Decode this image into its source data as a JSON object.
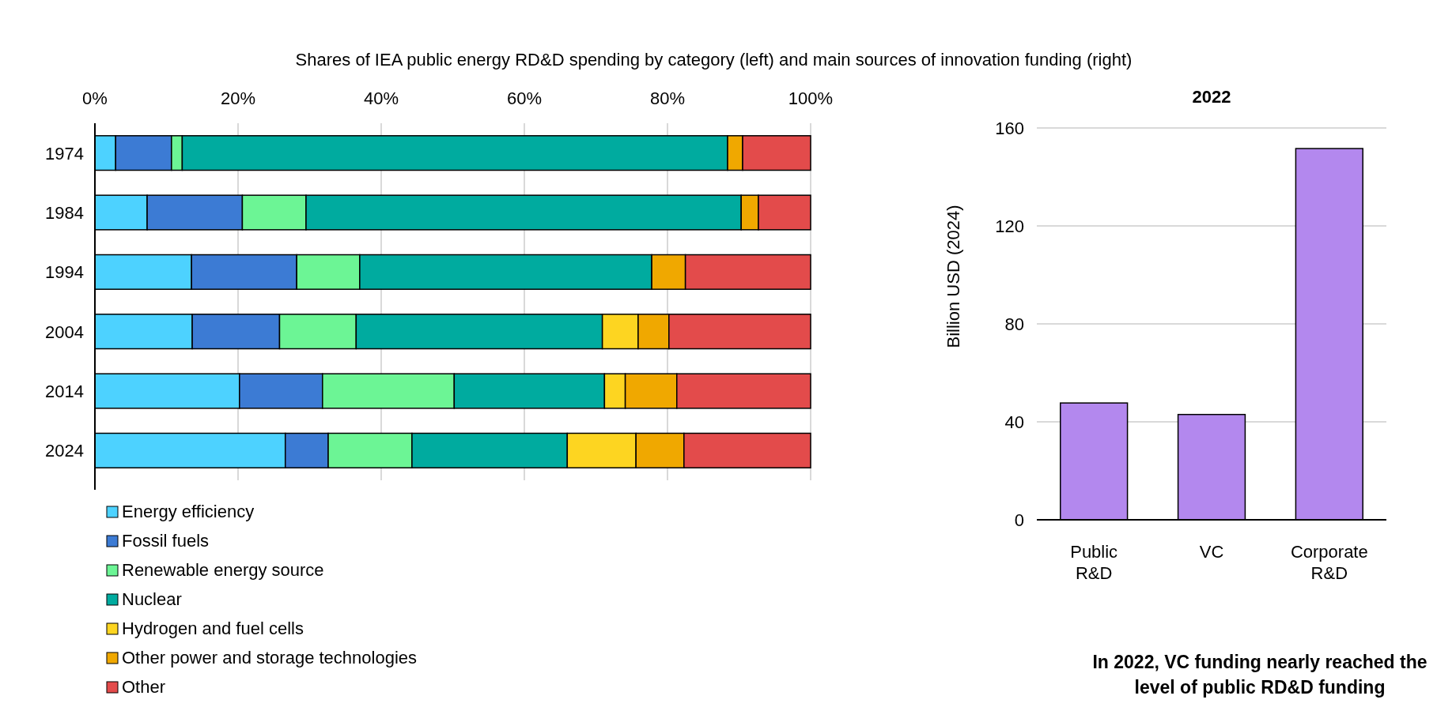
{
  "chart_data": [
    {
      "type": "bar",
      "orientation": "horizontal",
      "stacked": true,
      "title": "Shares of IEA public energy RD&D spending by category (left) and main sources of innovation funding (right)",
      "categories": [
        "1974",
        "1984",
        "1994",
        "2004",
        "2014",
        "2024"
      ],
      "series": [
        {
          "name": "Energy efficiency",
          "color": "#4dd2ff",
          "values": [
            2.9,
            7.3,
            13.5,
            13.6,
            20.2,
            26.6
          ]
        },
        {
          "name": "Fossil fuels",
          "color": "#3c7bd4",
          "values": [
            7.8,
            13.3,
            14.7,
            12.2,
            11.6,
            6.0
          ]
        },
        {
          "name": "Renewable energy source",
          "color": "#6cf595",
          "values": [
            1.5,
            8.9,
            8.8,
            10.7,
            18.4,
            11.7
          ]
        },
        {
          "name": "Nuclear",
          "color": "#00ab9f",
          "values": [
            76.2,
            60.8,
            40.8,
            34.4,
            21.0,
            21.7
          ]
        },
        {
          "name": "Hydrogen and fuel cells",
          "color": "#fdd521",
          "values": [
            0,
            0,
            0,
            5.0,
            2.9,
            9.6
          ]
        },
        {
          "name": "Other power and storage technologies",
          "color": "#f0a800",
          "values": [
            2.1,
            2.4,
            4.7,
            4.3,
            7.2,
            6.7
          ]
        },
        {
          "name": "Other",
          "color": "#e34b4b",
          "values": [
            9.5,
            7.3,
            17.5,
            19.8,
            18.7,
            17.7
          ]
        }
      ],
      "xlim": [
        0,
        100
      ],
      "xticks": [
        {
          "value": 0,
          "label": "0%"
        },
        {
          "value": 20,
          "label": "20%"
        },
        {
          "value": 40,
          "label": "40%"
        },
        {
          "value": 60,
          "label": "60%"
        },
        {
          "value": 80,
          "label": "80%"
        },
        {
          "value": 100,
          "label": "100%"
        }
      ],
      "grid": "x",
      "legend": "bottom"
    },
    {
      "type": "bar",
      "title": "2022",
      "ylabel": "Billion USD (2024)",
      "categories": [
        "Public R&D",
        "VC",
        "Corporate R&D"
      ],
      "values": [
        47.7,
        43.0,
        151.6
      ],
      "color": "#b388ee",
      "ylim": [
        0,
        160
      ],
      "yticks": [
        0,
        40,
        80,
        120,
        160
      ],
      "grid": "y",
      "annotations": [
        "In 2022, VC funding nearly reached the level of public RD&D funding"
      ]
    }
  ]
}
